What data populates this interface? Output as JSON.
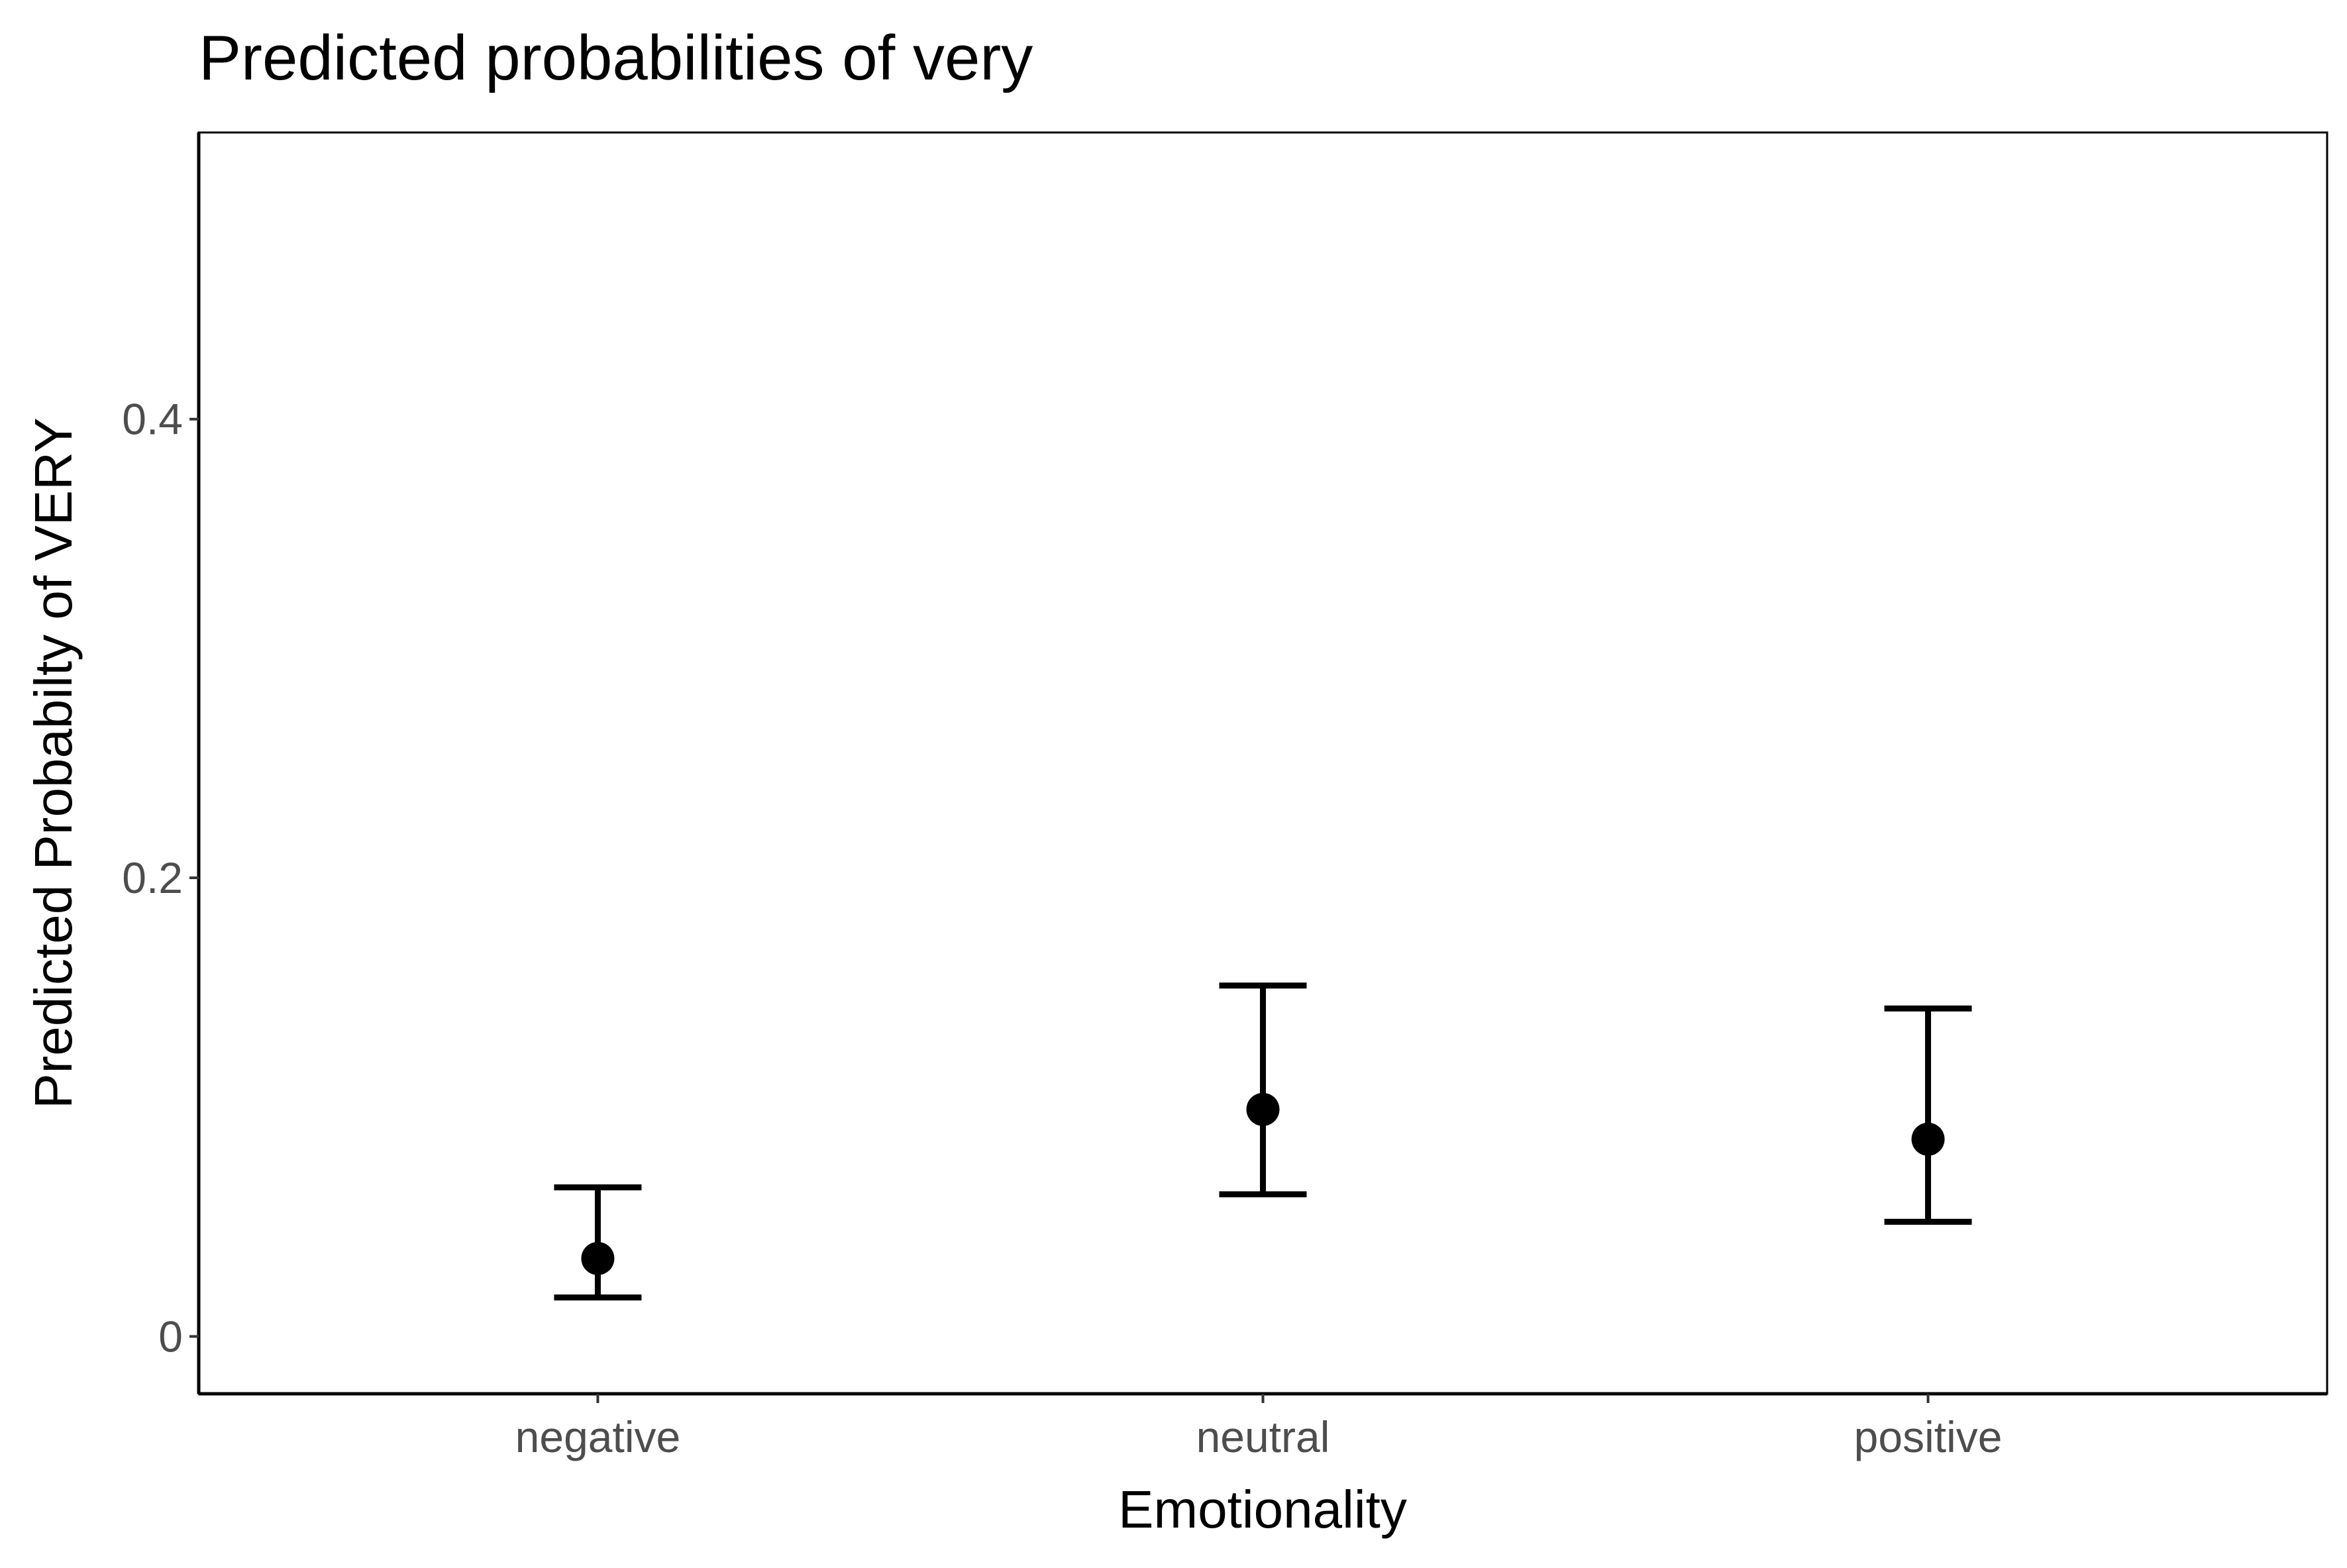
{
  "chart_data": {
    "type": "scatter",
    "title": "Predicted probabilities of very",
    "xlabel": "Emotionality",
    "ylabel": "Predicted Probabilty of VERY",
    "categories": [
      "negative",
      "neutral",
      "positive"
    ],
    "series": [
      {
        "values": [
          0.034,
          0.099,
          0.086
        ],
        "lower": [
          0.017,
          0.062,
          0.05
        ],
        "upper": [
          0.065,
          0.153,
          0.143
        ]
      }
    ],
    "yticks": [
      0,
      0.2,
      0.4
    ],
    "ytick_labels": [
      "0",
      "0.2",
      "0.4"
    ],
    "ylim": [
      -0.025,
      0.525
    ],
    "grid": false,
    "legend": "none",
    "colors": {
      "mark": "#000000",
      "tick_label": "#4d4d4d",
      "panel_border": "#000000"
    }
  }
}
